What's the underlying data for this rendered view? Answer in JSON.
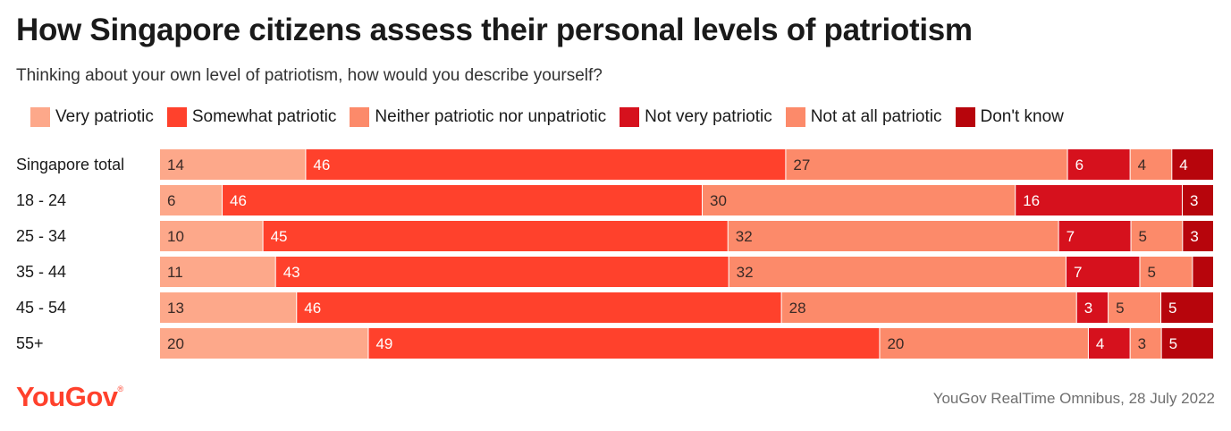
{
  "title": "How Singapore citizens assess their personal levels of patriotism",
  "subtitle": "Thinking about your own level of patriotism, how would you describe yourself?",
  "logo_text": "YouGov",
  "source": "YouGov RealTime Omnibus, 28 July 2022",
  "chart_data": {
    "type": "bar",
    "stacked": true,
    "orientation": "horizontal",
    "categories": [
      "Singapore total",
      "18 - 24",
      "25 - 34",
      "35 - 44",
      "45 - 54",
      "55+"
    ],
    "series": [
      {
        "name": "Very patriotic",
        "color": "#fda88a",
        "values": [
          14,
          6,
          10,
          11,
          13,
          20
        ],
        "labels": [
          "14",
          "6",
          "10",
          "11",
          "13",
          "20"
        ]
      },
      {
        "name": "Somewhat patriotic",
        "color": "#ff412c",
        "values": [
          46,
          46,
          45,
          43,
          46,
          49
        ],
        "labels": [
          "46",
          "46",
          "45",
          "43",
          "46",
          "49"
        ]
      },
      {
        "name": "Neither patriotic nor unpatriotic",
        "color": "#fc8a6a",
        "values": [
          27,
          30,
          32,
          32,
          28,
          20
        ],
        "labels": [
          "27",
          "30",
          "32",
          "32",
          "28",
          "20"
        ]
      },
      {
        "name": "Not very patriotic",
        "color": "#d6111d",
        "values": [
          6,
          16,
          7,
          7,
          3,
          4
        ],
        "labels": [
          "6",
          "16",
          "7",
          "7",
          "3",
          "4"
        ]
      },
      {
        "name": "Not at all patriotic",
        "color": "#fc8a6a",
        "values": [
          4,
          0,
          5,
          5,
          5,
          3
        ],
        "labels": [
          "4",
          "",
          "5",
          "5",
          "5",
          "3"
        ]
      },
      {
        "name": "Don't know",
        "color": "#b7050c",
        "values": [
          4,
          3,
          3,
          2,
          5,
          5
        ],
        "labels": [
          "4",
          "3",
          "3",
          "",
          "5",
          "5"
        ]
      }
    ]
  }
}
